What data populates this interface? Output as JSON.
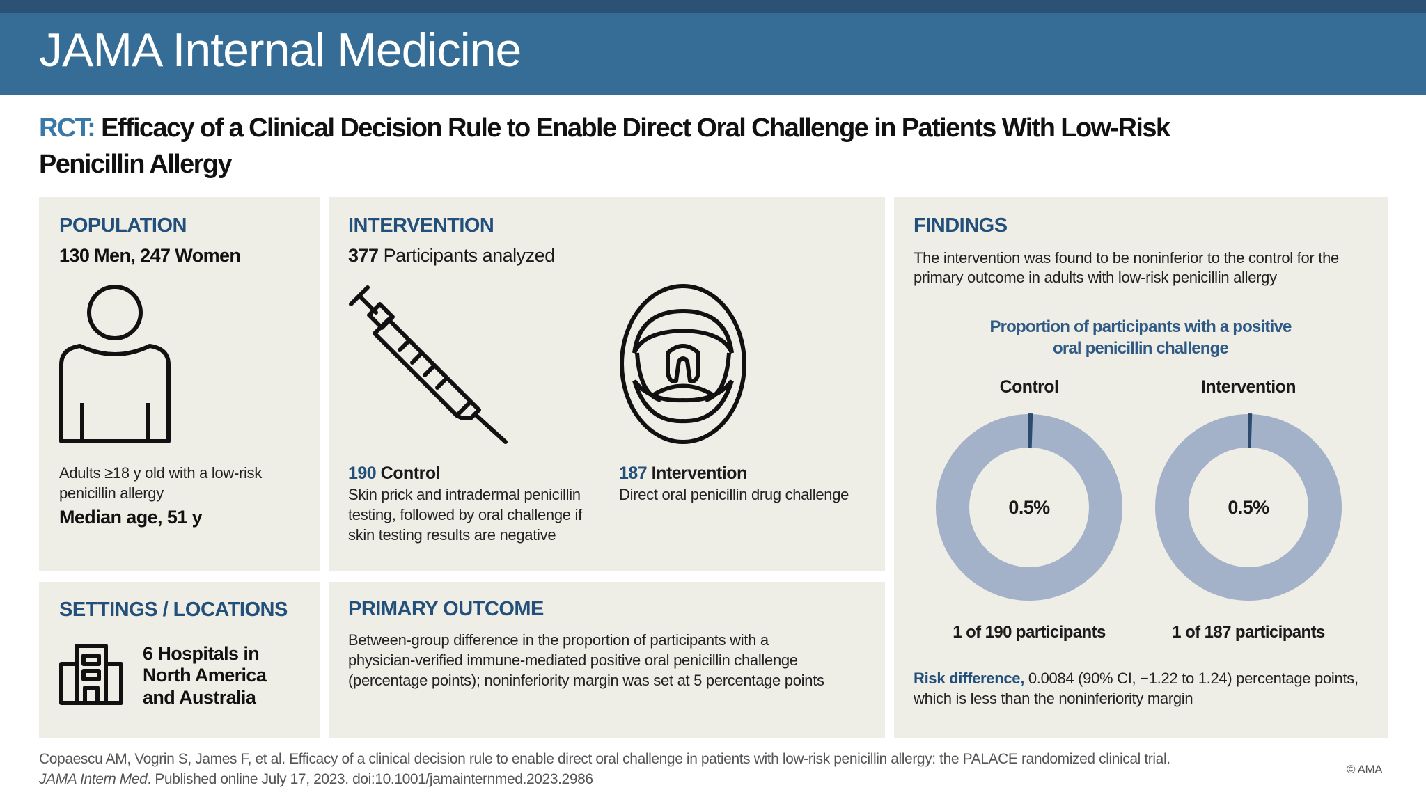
{
  "header": {
    "journal": "JAMA Internal Medicine"
  },
  "title": {
    "label": "RCT:",
    "line1": "Efficacy of a Clinical Decision Rule to Enable Direct Oral Challenge in Patients With Low-Risk",
    "line2": "Penicillin Allergy"
  },
  "population": {
    "heading": "POPULATION",
    "summary": "130 Men, 247 Women",
    "icon": "person-icon",
    "desc_line1": "Adults ≥18 y old with a low-risk",
    "desc_line2": "penicillin allergy",
    "median": "Median age, 51 y"
  },
  "intervention": {
    "heading": "INTERVENTION",
    "count": "377",
    "count_label": " Participants analyzed",
    "control": {
      "n": "190",
      "label": " Control",
      "icon": "syringe-icon",
      "lines": [
        "Skin prick and intradermal penicillin",
        "testing, followed by oral challenge if",
        "skin testing results are negative"
      ]
    },
    "treatment": {
      "n": "187",
      "label": " Intervention",
      "icon": "open-mouth-icon",
      "lines": [
        "Direct oral penicillin drug challenge"
      ]
    }
  },
  "settings": {
    "heading": "SETTINGS / LOCATIONS",
    "icon": "hospital-building-icon",
    "lines": [
      "6 Hospitals in",
      "North America",
      "and Australia"
    ]
  },
  "primary_outcome": {
    "heading": "PRIMARY OUTCOME",
    "lines": [
      "Between-group difference in the proportion of participants with a",
      "physician-verified immune-mediated positive oral penicillin challenge",
      "(percentage points); noninferiority margin was set at 5 percentage points"
    ]
  },
  "findings": {
    "heading": "FINDINGS",
    "lines": [
      "The intervention was found to be noninferior to the control for the",
      "primary outcome in adults with low-risk penicillin allergy"
    ],
    "risk_label": "Risk difference,",
    "risk_line1": " 0.0084 (90% CI, −1.22 to 1.24) percentage points,",
    "risk_line2": "which is less than the noninferiority margin"
  },
  "chart_data": {
    "type": "pie",
    "title_line1": "Proportion of participants with a positive",
    "title_line2": "oral penicillin challenge",
    "series": [
      {
        "name": "Control",
        "value_pct": 0.5,
        "value_label": "0.5%",
        "caption": "1 of 190 participants"
      },
      {
        "name": "Intervention",
        "value_pct": 0.5,
        "value_label": "0.5%",
        "caption": "1 of 187 participants"
      }
    ],
    "colors": {
      "ring": "#a3b1c9",
      "slice": "#2c4b6e"
    }
  },
  "footer": {
    "citation_line1": "Copaescu AM, Vogrin S, James F, et al. Efficacy of a clinical decision rule to enable direct oral challenge in patients with low-risk penicillin allergy: the PALACE randomized clinical trial.",
    "journal_abbrev": "JAMA Intern Med",
    "citation_line2": ". Published online July 17, 2023. doi:10.1001/jamainternmed.2023.2986",
    "copyright": "© AMA"
  }
}
